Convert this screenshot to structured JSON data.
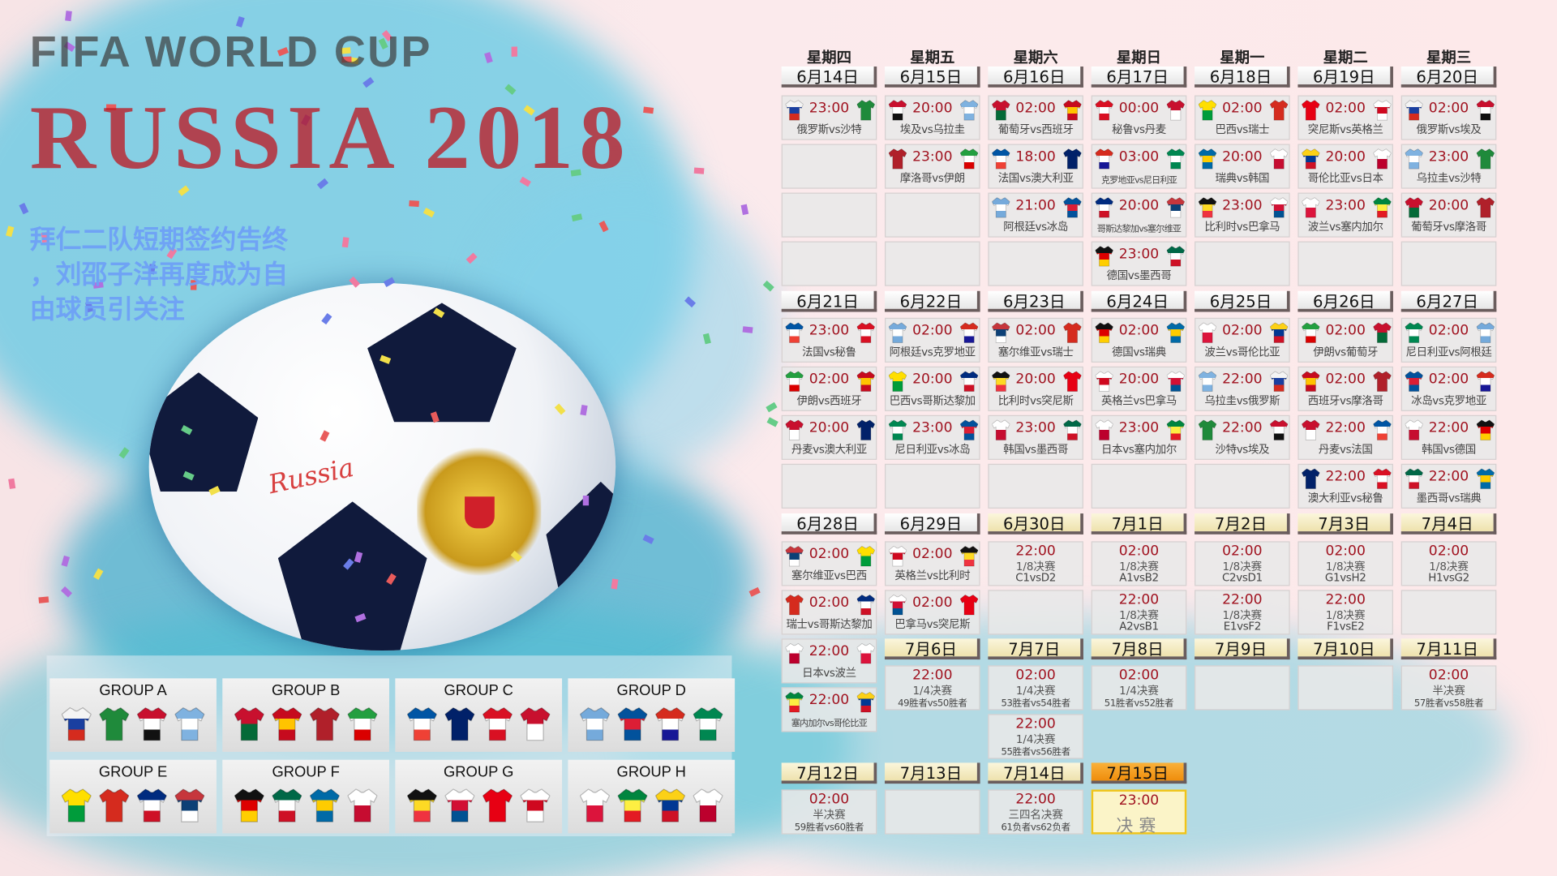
{
  "headline": {
    "lines": [
      "拜仁二队短期签约告终",
      "，刘邵子洋再度成为自",
      "由球员引关注"
    ]
  },
  "ball_text": "Russia",
  "watermarks": {
    "fifa": "FIFA WORLD CUP",
    "russia": "RUSSIA 2018"
  },
  "weekdays": [
    "星期四",
    "星期五",
    "星期六",
    "星期日",
    "星期一",
    "星期二",
    "星期三"
  ],
  "blocks": [
    {
      "date": "6月14日",
      "cells": [
        {
          "time": "23:00",
          "teams": "俄罗斯vs沙特"
        }
      ]
    },
    {
      "date": "6月15日",
      "cells": [
        {
          "time": "20:00",
          "teams": "埃及vs乌拉圭"
        },
        {
          "time": "23:00",
          "teams": "摩洛哥vs伊朗"
        }
      ]
    },
    {
      "date": "6月16日",
      "cells": [
        {
          "time": "02:00",
          "teams": "葡萄牙vs西班牙"
        },
        {
          "time": "18:00",
          "teams": "法国vs澳大利亚"
        },
        {
          "time": "21:00",
          "teams": "阿根廷vs冰岛"
        }
      ]
    },
    {
      "date": "6月17日",
      "cells": [
        {
          "time": "00:00",
          "teams": "秘鲁vs丹麦"
        },
        {
          "time": "03:00",
          "teams": "克罗地亚vs尼日利亚"
        },
        {
          "time": "20:00",
          "teams": "哥斯达黎加vs塞尔维亚"
        },
        {
          "time": "23:00",
          "teams": "德国vs墨西哥"
        }
      ]
    },
    {
      "date": "6月18日",
      "cells": [
        {
          "time": "02:00",
          "teams": "巴西vs瑞士"
        },
        {
          "time": "20:00",
          "teams": "瑞典vs韩国"
        },
        {
          "time": "23:00",
          "teams": "比利时vs巴拿马"
        }
      ]
    },
    {
      "date": "6月19日",
      "cells": [
        {
          "time": "02:00",
          "teams": "突尼斯vs英格兰"
        },
        {
          "time": "20:00",
          "teams": "哥伦比亚vs日本"
        },
        {
          "time": "23:00",
          "teams": "波兰vs塞内加尔"
        }
      ]
    },
    {
      "date": "6月20日",
      "cells": [
        {
          "time": "02:00",
          "teams": "俄罗斯vs埃及"
        },
        {
          "time": "23:00",
          "teams": "乌拉圭vs沙特"
        },
        {
          "time": "20:00",
          "teams": "葡萄牙vs摩洛哥"
        }
      ]
    },
    {
      "date": "6月21日",
      "cells": [
        {
          "time": "23:00",
          "teams": "法国vs秘鲁"
        },
        {
          "time": "02:00",
          "teams": "伊朗vs西班牙"
        },
        {
          "time": "20:00",
          "teams": "丹麦vs澳大利亚"
        }
      ]
    },
    {
      "date": "6月22日",
      "cells": [
        {
          "time": "02:00",
          "teams": "阿根廷vs克罗地亚"
        },
        {
          "time": "20:00",
          "teams": "巴西vs哥斯达黎加"
        },
        {
          "time": "23:00",
          "teams": "尼日利亚vs冰岛"
        }
      ]
    },
    {
      "date": "6月23日",
      "cells": [
        {
          "time": "02:00",
          "teams": "塞尔维亚vs瑞士"
        },
        {
          "time": "20:00",
          "teams": "比利时vs突尼斯"
        },
        {
          "time": "23:00",
          "teams": "韩国vs墨西哥"
        }
      ]
    },
    {
      "date": "6月24日",
      "cells": [
        {
          "time": "02:00",
          "teams": "德国vs瑞典"
        },
        {
          "time": "20:00",
          "teams": "英格兰vs巴拿马"
        },
        {
          "time": "23:00",
          "teams": "日本vs塞内加尔"
        }
      ]
    },
    {
      "date": "6月25日",
      "cells": [
        {
          "time": "02:00",
          "teams": "波兰vs哥伦比亚"
        },
        {
          "time": "22:00",
          "teams": "乌拉圭vs俄罗斯"
        },
        {
          "time": "22:00",
          "teams": "沙特vs埃及"
        }
      ]
    },
    {
      "date": "6月26日",
      "cells": [
        {
          "time": "02:00",
          "teams": "伊朗vs葡萄牙"
        },
        {
          "time": "02:00",
          "teams": "西班牙vs摩洛哥"
        },
        {
          "time": "22:00",
          "teams": "丹麦vs法国"
        },
        {
          "time": "22:00",
          "teams": "澳大利亚vs秘鲁"
        }
      ]
    },
    {
      "date": "6月27日",
      "cells": [
        {
          "time": "02:00",
          "teams": "尼日利亚vs阿根廷"
        },
        {
          "time": "02:00",
          "teams": "冰岛vs克罗地亚"
        },
        {
          "time": "22:00",
          "teams": "韩国vs德国"
        },
        {
          "time": "22:00",
          "teams": "墨西哥vs瑞典"
        }
      ]
    },
    {
      "date": "6月28日",
      "cells": [
        {
          "time": "02:00",
          "teams": "塞尔维亚vs巴西"
        },
        {
          "time": "02:00",
          "teams": "瑞士vs哥斯达黎加"
        },
        {
          "time": "22:00",
          "teams": "日本vs波兰"
        },
        {
          "time": "22:00",
          "teams": "塞内加尔vs哥伦比亚"
        }
      ]
    },
    {
      "date": "6月29日",
      "cells": [
        {
          "time": "02:00",
          "teams": "英格兰vs比利时"
        },
        {
          "time": "02:00",
          "teams": "巴拿马vs突尼斯"
        }
      ]
    },
    {
      "date": "6月30日",
      "kind": "ko",
      "cells": [
        {
          "time": "22:00",
          "stage": "1/8决赛",
          "pair": "C1vsD2"
        }
      ]
    },
    {
      "date": "7月1日",
      "kind": "ko",
      "cells": [
        {
          "time": "02:00",
          "stage": "1/8决赛",
          "pair": "A1vsB2"
        },
        {
          "time": "22:00",
          "stage": "1/8决赛",
          "pair": "A2vsB1"
        }
      ]
    },
    {
      "date": "7月2日",
      "kind": "ko",
      "cells": [
        {
          "time": "02:00",
          "stage": "1/8决赛",
          "pair": "C2vsD1"
        },
        {
          "time": "22:00",
          "stage": "1/8决赛",
          "pair": "E1vsF2"
        }
      ]
    },
    {
      "date": "7月3日",
      "kind": "ko",
      "cells": [
        {
          "time": "02:00",
          "stage": "1/8决赛",
          "pair": "G1vsH2"
        },
        {
          "time": "22:00",
          "stage": "1/8决赛",
          "pair": "F1vsE2"
        }
      ]
    },
    {
      "date": "7月4日",
      "kind": "ko",
      "cells": [
        {
          "time": "02:00",
          "stage": "1/8决赛",
          "pair": "H1vsG2"
        }
      ]
    },
    {
      "date": "7月6日",
      "kind": "ko",
      "cells": [
        {
          "time": "22:00",
          "stage": "1/4决赛",
          "pair": "49胜者vs50胜者"
        }
      ]
    },
    {
      "date": "7月7日",
      "kind": "ko",
      "cells": [
        {
          "time": "02:00",
          "stage": "1/4决赛",
          "pair": "53胜者vs54胜者"
        },
        {
          "time": "22:00",
          "stage": "1/4决赛",
          "pair": "55胜者vs56胜者"
        }
      ]
    },
    {
      "date": "7月8日",
      "kind": "ko",
      "cells": [
        {
          "time": "02:00",
          "stage": "1/4决赛",
          "pair": "51胜者vs52胜者"
        }
      ]
    },
    {
      "date": "7月9日",
      "kind": "ko",
      "cells": []
    },
    {
      "date": "7月10日",
      "kind": "ko",
      "cells": []
    },
    {
      "date": "7月11日",
      "kind": "ko",
      "cells": [
        {
          "time": "02:00",
          "stage": "半决赛",
          "pair": "57胜者vs58胜者"
        }
      ]
    },
    {
      "date": "7月12日",
      "kind": "ko",
      "cells": [
        {
          "time": "02:00",
          "stage": "半决赛",
          "pair": "59胜者vs60胜者"
        }
      ]
    },
    {
      "date": "7月13日",
      "kind": "ko",
      "cells": []
    },
    {
      "date": "7月14日",
      "kind": "ko",
      "cells": [
        {
          "time": "22:00",
          "stage": "三四名决赛",
          "pair": "61负者vs62负者"
        }
      ]
    },
    {
      "date": "7月15日",
      "kind": "final",
      "cells": [
        {
          "time": "23:00",
          "stage": "决赛"
        }
      ]
    }
  ],
  "groups": [
    {
      "label": "GROUP A",
      "teams": [
        "俄罗斯",
        "沙特",
        "埃及",
        "乌拉圭"
      ]
    },
    {
      "label": "GROUP B",
      "teams": [
        "葡萄牙",
        "西班牙",
        "摩洛哥",
        "伊朗"
      ]
    },
    {
      "label": "GROUP C",
      "teams": [
        "法国",
        "澳大利亚",
        "秘鲁",
        "丹麦"
      ]
    },
    {
      "label": "GROUP D",
      "teams": [
        "阿根廷",
        "冰岛",
        "克罗地亚",
        "尼日利亚"
      ]
    },
    {
      "label": "GROUP E",
      "teams": [
        "巴西",
        "瑞士",
        "哥斯达黎加",
        "塞尔维亚"
      ]
    },
    {
      "label": "GROUP F",
      "teams": [
        "德国",
        "墨西哥",
        "瑞典",
        "韩国"
      ]
    },
    {
      "label": "GROUP G",
      "teams": [
        "比利时",
        "巴拿马",
        "突尼斯",
        "英格兰"
      ]
    },
    {
      "label": "GROUP H",
      "teams": [
        "波兰",
        "塞内加尔",
        "哥伦比亚",
        "日本"
      ]
    }
  ],
  "jersey_colors": {
    "俄罗斯": [
      "#f4f4f4",
      "#1a3fa0",
      "#d52b1e"
    ],
    "沙特": [
      "#1f8a3b",
      "#1f8a3b"
    ],
    "埃及": [
      "#c8102e",
      "#ffffff",
      "#111111"
    ],
    "乌拉圭": [
      "#7fb2e0",
      "#ffffff",
      "#7fb2e0"
    ],
    "摩洛哥": [
      "#b0202a",
      "#b0202a"
    ],
    "伊朗": [
      "#239f40",
      "#ffffff",
      "#da0000"
    ],
    "葡萄牙": [
      "#c8102e",
      "#046a38"
    ],
    "西班牙": [
      "#c60b1e",
      "#ffc400",
      "#c60b1e"
    ],
    "法国": [
      "#0055a4",
      "#ffffff",
      "#ef4135"
    ],
    "澳大利亚": [
      "#012169",
      "#012169"
    ],
    "阿根廷": [
      "#75aadb",
      "#ffffff",
      "#75aadb"
    ],
    "冰岛": [
      "#02529c",
      "#dc1e35",
      "#02529c"
    ],
    "秘鲁": [
      "#d91023",
      "#ffffff",
      "#d91023"
    ],
    "丹麦": [
      "#c8102e",
      "#ffffff"
    ],
    "克罗地亚": [
      "#d52b1e",
      "#ffffff",
      "#171796"
    ],
    "尼日利亚": [
      "#008751",
      "#ffffff",
      "#008751"
    ],
    "哥斯达黎加": [
      "#002b7f",
      "#ffffff",
      "#ce1126"
    ],
    "塞尔维亚": [
      "#c6363c",
      "#0c4076",
      "#ffffff"
    ],
    "德国": [
      "#111111",
      "#dd0000",
      "#ffce00"
    ],
    "墨西哥": [
      "#006847",
      "#ffffff",
      "#ce1126"
    ],
    "巴西": [
      "#ffdf00",
      "#009c3b"
    ],
    "瑞士": [
      "#d52b1e",
      "#d52b1e"
    ],
    "瑞典": [
      "#006aa7",
      "#fecc00",
      "#006aa7"
    ],
    "韩国": [
      "#ffffff",
      "#c60c30"
    ],
    "比利时": [
      "#111111",
      "#fdda24",
      "#ef3340"
    ],
    "巴拿马": [
      "#ffffff",
      "#d21034",
      "#005293"
    ],
    "突尼斯": [
      "#e70013",
      "#e70013"
    ],
    "英格兰": [
      "#ffffff",
      "#cf081f",
      "#ffffff"
    ],
    "哥伦比亚": [
      "#fcd116",
      "#003893",
      "#ce1126"
    ],
    "日本": [
      "#ffffff",
      "#bc002d"
    ],
    "波兰": [
      "#ffffff",
      "#dc143c"
    ],
    "塞内加尔": [
      "#00853f",
      "#fdef42",
      "#e31b23"
    ]
  },
  "colors": {
    "time": "#a0121f",
    "ko_header": "#eee2ad",
    "final_header": "#ef8d0c"
  }
}
